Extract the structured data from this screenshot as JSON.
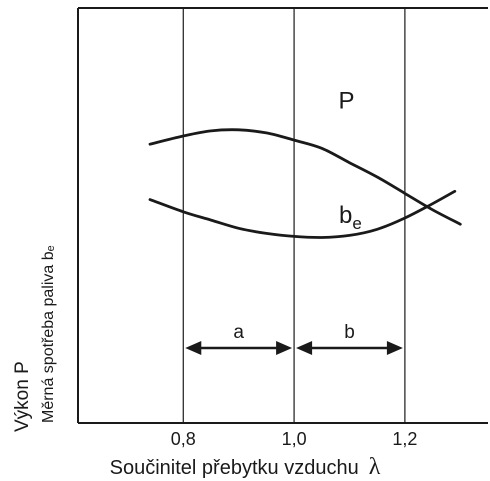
{
  "chart_data": {
    "type": "line",
    "xlabel": "Součinitel přebytku vzduchu",
    "xlabel_symbol": "λ",
    "ylabel_lines": [
      "Výkon P",
      "Měrná spotřeba paliva bₑ"
    ],
    "x_ticks": [
      "0,8",
      "1,0",
      "1,2"
    ],
    "x_tick_values": [
      0.8,
      1.0,
      1.2
    ],
    "xlim": [
      0.61,
      1.35
    ],
    "ylim": [
      0,
      1
    ],
    "grid": "vertical lines at ticks",
    "series": [
      {
        "name": "P",
        "label_main": "P",
        "label_sub": "",
        "x": [
          0.74,
          0.8,
          0.85,
          0.9,
          0.95,
          1.0,
          1.05,
          1.1,
          1.15,
          1.2,
          1.25,
          1.3
        ],
        "y": [
          0.76,
          0.8,
          0.825,
          0.83,
          0.815,
          0.78,
          0.74,
          0.67,
          0.6,
          0.52,
          0.44,
          0.37
        ]
      },
      {
        "name": "be",
        "label_main": "b",
        "label_sub": "e",
        "x": [
          0.74,
          0.8,
          0.85,
          0.9,
          0.95,
          1.0,
          1.05,
          1.1,
          1.15,
          1.2,
          1.25,
          1.29
        ],
        "y": [
          0.49,
          0.43,
          0.39,
          0.35,
          0.325,
          0.31,
          0.305,
          0.315,
          0.345,
          0.4,
          0.47,
          0.53
        ]
      }
    ],
    "ranges": [
      {
        "label": "a",
        "from": 0.8,
        "to": 1.0
      },
      {
        "label": "b",
        "from": 1.0,
        "to": 1.2
      }
    ],
    "colors": {
      "ink": "#1a1a1a",
      "background": "#ffffff"
    }
  }
}
